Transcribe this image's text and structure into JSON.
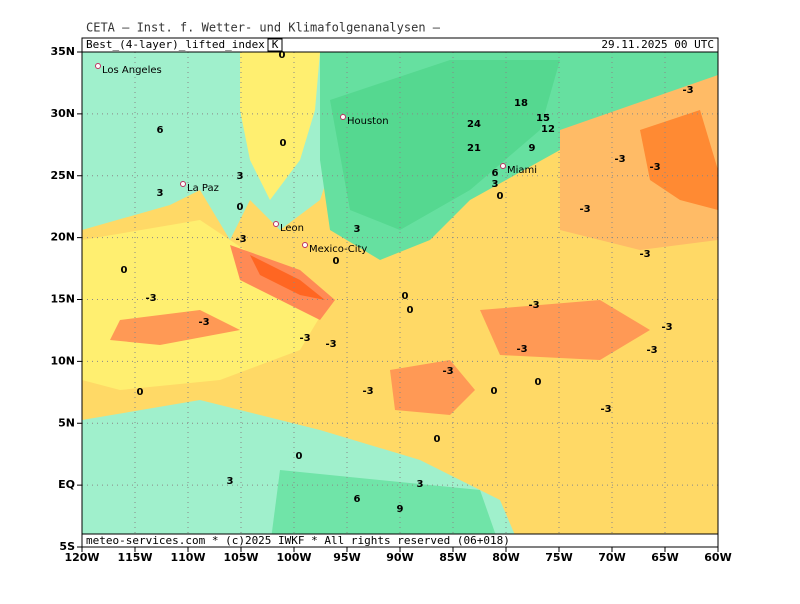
{
  "header": {
    "title": "CETA — Inst. f. Wetter- und Klimafolgenanalysen —",
    "field": "Best_(4-layer)_lifted_index",
    "unit": "K",
    "datetime": "29.11.2025 00 UTC"
  },
  "axes": {
    "lat_labels": [
      "35N",
      "30N",
      "25N",
      "20N",
      "15N",
      "10N",
      "5N",
      "EQ",
      "5S"
    ],
    "lon_labels": [
      "120W",
      "115W",
      "110W",
      "105W",
      "100W",
      "95W",
      "90W",
      "85W",
      "80W",
      "75W",
      "70W",
      "65W",
      "60W"
    ]
  },
  "cities": [
    "Los Angeles",
    "Houston",
    "Miami",
    "La Paz",
    "Leon",
    "Mexico-City"
  ],
  "contour_labels": [
    "0",
    "6",
    "0",
    "3",
    "3",
    "0",
    "-3",
    "0",
    "-3",
    "-3",
    "-3",
    "-3",
    "-3",
    "0",
    "0",
    "3",
    "6",
    "3",
    "9",
    "0",
    "3",
    "0",
    "0",
    "0",
    "-3",
    "0",
    "0",
    "-3",
    "-3",
    "-3",
    "-3",
    "-3",
    "-3",
    "-3",
    "-3",
    "-3",
    "-3",
    "18",
    "24",
    "15",
    "12",
    "21",
    "9",
    "6",
    "3",
    "0"
  ],
  "footer": "meteo-services.com * (c)2025 IWKF * All rights reserved (06+018)"
}
